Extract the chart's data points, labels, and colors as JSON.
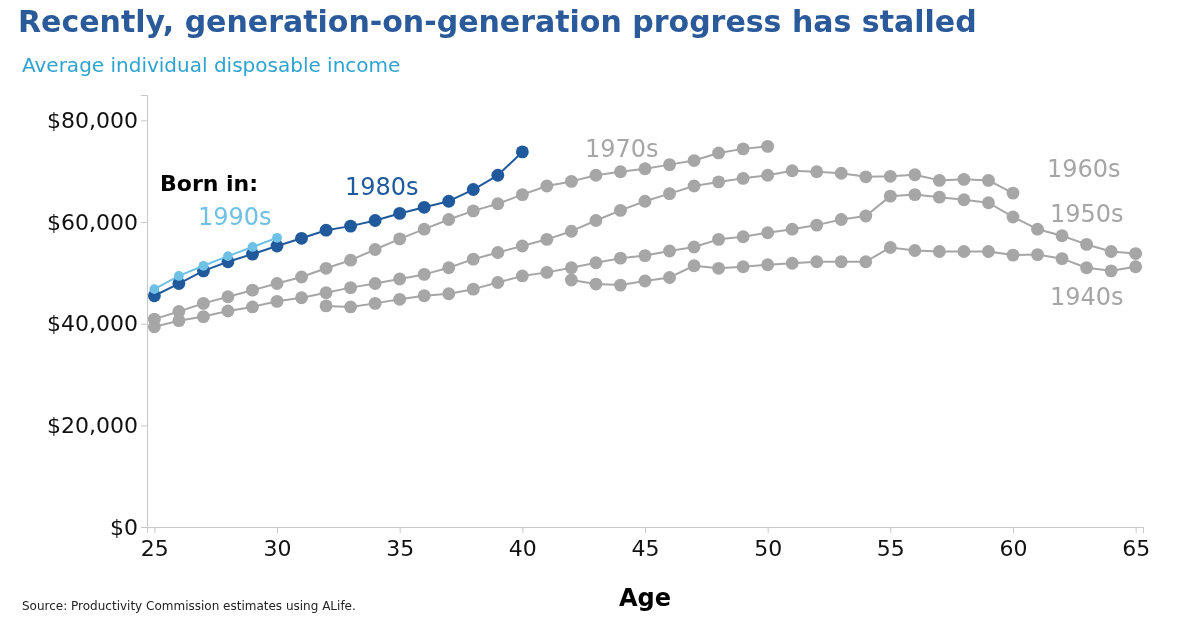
{
  "chart_data": {
    "type": "line",
    "title": "Recently, generation-on-generation progress has stalled",
    "subtitle": "Average individual disposable income",
    "xlabel": "Age",
    "annotations": [
      "Born in:",
      "Source: Productivity Commission estimates using ALife."
    ],
    "xlim": [
      24.7,
      65.3
    ],
    "xticks": [
      25,
      30,
      35,
      40,
      45,
      50,
      55,
      60,
      65
    ],
    "ylim": [
      0,
      85000
    ],
    "yticks": [
      {
        "value": 0,
        "label": "$0"
      },
      {
        "value": 20000,
        "label": "$20,000"
      },
      {
        "value": 40000,
        "label": "$40,000"
      },
      {
        "value": 60000,
        "label": "$60,000"
      },
      {
        "value": 80000,
        "label": "$80,000"
      }
    ],
    "marker": "circle",
    "line_style": "solid",
    "grid": false,
    "legend": false,
    "series": [
      {
        "name": "1940s",
        "color": "#a6a6a6",
        "x": [
          42,
          43,
          44,
          45,
          46,
          47,
          48,
          49,
          50,
          51,
          52,
          53,
          54,
          55,
          56,
          57,
          58,
          59,
          60,
          61,
          62,
          63,
          64,
          65
        ],
        "values": [
          48600,
          47800,
          47600,
          48400,
          49100,
          51400,
          50900,
          51200,
          51600,
          51900,
          52200,
          52200,
          52200,
          55000,
          54400,
          54200,
          54200,
          54200,
          53500,
          53600,
          52800,
          51000,
          50400,
          51200
        ]
      },
      {
        "name": "1950s",
        "color": "#a6a6a6",
        "x": [
          32,
          33,
          34,
          35,
          36,
          37,
          38,
          39,
          40,
          41,
          42,
          43,
          44,
          45,
          46,
          47,
          48,
          49,
          50,
          51,
          52,
          53,
          54,
          55,
          56,
          57,
          58,
          59,
          60,
          61,
          62,
          63,
          64,
          65
        ],
        "values": [
          43500,
          43300,
          44000,
          44800,
          45500,
          45900,
          46800,
          48100,
          49400,
          50100,
          51000,
          52000,
          52900,
          53400,
          54300,
          55100,
          56600,
          57100,
          57900,
          58600,
          59400,
          60500,
          61200,
          65100,
          65400,
          64900,
          64400,
          63800,
          61000,
          58600,
          57300,
          55600,
          54200,
          53800
        ]
      },
      {
        "name": "1960s",
        "color": "#a6a6a6",
        "x": [
          25,
          26,
          27,
          28,
          29,
          30,
          31,
          32,
          33,
          34,
          35,
          36,
          37,
          38,
          39,
          40,
          41,
          42,
          43,
          44,
          45,
          46,
          47,
          48,
          49,
          50,
          51,
          52,
          53,
          54,
          55,
          56,
          57,
          58,
          59,
          60
        ],
        "values": [
          39400,
          40600,
          41400,
          42500,
          43300,
          44400,
          45100,
          46100,
          47100,
          47900,
          48800,
          49700,
          51000,
          52700,
          54000,
          55300,
          56600,
          58200,
          60300,
          62300,
          64100,
          65600,
          67100,
          67900,
          68600,
          69200,
          70100,
          69900,
          69600,
          68900,
          69000,
          69300,
          68200,
          68400,
          68200,
          65700
        ]
      },
      {
        "name": "1970s",
        "color": "#a6a6a6",
        "x": [
          25,
          26,
          27,
          28,
          29,
          30,
          31,
          32,
          33,
          34,
          35,
          36,
          37,
          38,
          39,
          40,
          41,
          42,
          43,
          44,
          45,
          46,
          47,
          48,
          49,
          50
        ],
        "values": [
          40900,
          42400,
          44000,
          45300,
          46600,
          47900,
          49200,
          50900,
          52500,
          54600,
          56700,
          58600,
          60500,
          62200,
          63600,
          65400,
          67100,
          68000,
          69200,
          69900,
          70500,
          71300,
          72100,
          73600,
          74400,
          74900
        ]
      },
      {
        "name": "1980s",
        "color": "#215a9c",
        "x": [
          25,
          26,
          27,
          28,
          29,
          30,
          31,
          32,
          33,
          34,
          35,
          36,
          37,
          38,
          39,
          40
        ],
        "values": [
          45500,
          47900,
          50400,
          52200,
          53700,
          55300,
          56800,
          58400,
          59200,
          60300,
          61700,
          62900,
          64100,
          66400,
          69200,
          73800
        ]
      },
      {
        "name": "1990s",
        "color": "#6ec1e4",
        "x": [
          25,
          26,
          27,
          28,
          29,
          30
        ],
        "values": [
          46800,
          49400,
          51400,
          53300,
          55100,
          56900
        ]
      }
    ]
  }
}
